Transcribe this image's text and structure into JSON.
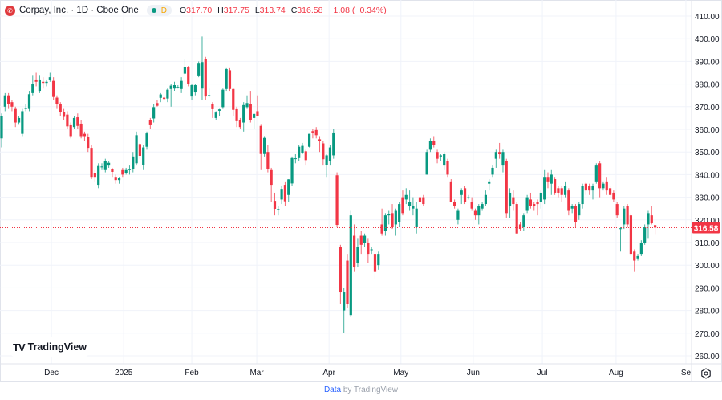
{
  "header": {
    "symbol_title": "Corpay, Inc. · 1D · Cboe One",
    "open_label": "O",
    "open": "317.70",
    "high_label": "H",
    "high": "317.75",
    "low_label": "L",
    "low": "313.74",
    "close_label": "C",
    "close": "316.58",
    "change": "−1.08 (−0.34%)",
    "market_status_letter": "D"
  },
  "branding": {
    "logo_text": "TradingView"
  },
  "footer": {
    "data_link": "Data",
    "by_text": "by TradingView"
  },
  "colors": {
    "up": "#089981",
    "down": "#f23645",
    "grid": "#f0f3fa",
    "text": "#131722"
  },
  "chart_data": {
    "type": "candlestick",
    "title": "Corpay, Inc. · 1D · Cboe One",
    "ylim": [
      260,
      410
    ],
    "yticks": [
      260,
      270,
      280,
      290,
      300,
      310,
      320,
      330,
      340,
      350,
      360,
      370,
      380,
      390,
      400,
      410
    ],
    "ytick_labels": [
      "260.00",
      "270.00",
      "280.00",
      "290.00",
      "300.00",
      "310.00",
      "320.00",
      "330.00",
      "340.00",
      "350.00",
      "360.00",
      "370.00",
      "380.00",
      "390.00",
      "400.00",
      "410.00"
    ],
    "xticks": [
      {
        "label": "Dec",
        "index": 14.4
      },
      {
        "label": "2025",
        "index": 35.3
      },
      {
        "label": "Feb",
        "index": 55
      },
      {
        "label": "Mar",
        "index": 73.8
      },
      {
        "label": "Apr",
        "index": 94.7
      },
      {
        "label": "May",
        "index": 115.5
      },
      {
        "label": "Jun",
        "index": 136.4
      },
      {
        "label": "Jul",
        "index": 156.4
      },
      {
        "label": "Aug",
        "index": 177.7
      },
      {
        "label": "Se",
        "index": 197.9
      }
    ],
    "last_price": 316.58,
    "last_price_label": "316.58",
    "grid": true,
    "candles_ohlc": [
      [
        356,
        367,
        352,
        366
      ],
      [
        370,
        376,
        368,
        375
      ],
      [
        375,
        376,
        369,
        371
      ],
      [
        372,
        373,
        368,
        370
      ],
      [
        369,
        370,
        361,
        363
      ],
      [
        363,
        366,
        362,
        365
      ],
      [
        358,
        369,
        357,
        368
      ],
      [
        369,
        371,
        368,
        369.5
      ],
      [
        369,
        377,
        368,
        375.5
      ],
      [
        376,
        384,
        375,
        380
      ],
      [
        382,
        385,
        379,
        381
      ],
      [
        377,
        384,
        376,
        382
      ],
      [
        381,
        383,
        378,
        380.5
      ],
      [
        380.5,
        382,
        379,
        381
      ],
      [
        382,
        385,
        381,
        383
      ],
      [
        381.4,
        383,
        373,
        374.3
      ],
      [
        374,
        375,
        369,
        371
      ],
      [
        371,
        372,
        366,
        367.5
      ],
      [
        367.7,
        369,
        364,
        365.5
      ],
      [
        366.5,
        368,
        360,
        361.3
      ],
      [
        361.8,
        363,
        356,
        357
      ],
      [
        361,
        366,
        360,
        365
      ],
      [
        365.3,
        367,
        360,
        361.5
      ],
      [
        362.5,
        364,
        356,
        357
      ],
      [
        358,
        359,
        355,
        357
      ],
      [
        356.6,
        358,
        350,
        351.8
      ],
      [
        351.8,
        353,
        338,
        339
      ],
      [
        340.8,
        342,
        337,
        339
      ],
      [
        335.5,
        345,
        334,
        343.8
      ],
      [
        343.2,
        345,
        342,
        343.6
      ],
      [
        342,
        347,
        341,
        346
      ],
      [
        344,
        346,
        343,
        345.2
      ],
      [
        342.4,
        343,
        339,
        341.2
      ],
      [
        339,
        340,
        336,
        337.6
      ],
      [
        337.6,
        339,
        336,
        338.5
      ],
      [
        342,
        343,
        339,
        340
      ],
      [
        340.8,
        343,
        340,
        342
      ],
      [
        342,
        344,
        340,
        342.6
      ],
      [
        342.6,
        350,
        341,
        348
      ],
      [
        345,
        359,
        344,
        357.4
      ],
      [
        353.5,
        354,
        347,
        348.3
      ],
      [
        344.4,
        353,
        342,
        352
      ],
      [
        352.3,
        359,
        351,
        358.2
      ],
      [
        363.9,
        365,
        360,
        361.8
      ],
      [
        364.8,
        371,
        363,
        369.8
      ],
      [
        371.6,
        373,
        370,
        370.4
      ],
      [
        373.9,
        376,
        372,
        375.4
      ],
      [
        374,
        375,
        373,
        373.4
      ],
      [
        373.6,
        378,
        372,
        377.5
      ],
      [
        377.8,
        380,
        370,
        379.3
      ],
      [
        378,
        381,
        377,
        379.5
      ],
      [
        378.5,
        379.5,
        378,
        378.7
      ],
      [
        377.8,
        383,
        376,
        381.4
      ],
      [
        384.6,
        391,
        384,
        387.5
      ],
      [
        387.5,
        388,
        379,
        380.2
      ],
      [
        374.5,
        380,
        373,
        379.5
      ],
      [
        376.3,
        380,
        375,
        379.5
      ],
      [
        383.8,
        390,
        383,
        389
      ],
      [
        378,
        401,
        373,
        389.7
      ],
      [
        391,
        392,
        373,
        374.5
      ],
      [
        374.8,
        378,
        374,
        375.1
      ],
      [
        371,
        372,
        365,
        368.9
      ],
      [
        365,
        368,
        364,
        367.4
      ],
      [
        368.2,
        369,
        366,
        368.8
      ],
      [
        369.8,
        378,
        369,
        377.5
      ],
      [
        377.8,
        387,
        377,
        386.6
      ],
      [
        386.1,
        387,
        377,
        377.8
      ],
      [
        377.8,
        378,
        366,
        368.6
      ],
      [
        368.9,
        370,
        361,
        363.6
      ],
      [
        363.9,
        365,
        360,
        361
      ],
      [
        363,
        372,
        359,
        370.7
      ],
      [
        369.8,
        375,
        369,
        371.6
      ],
      [
        371.2,
        377,
        363,
        364.1
      ],
      [
        365,
        367,
        360,
        366.8
      ],
      [
        368,
        375,
        366,
        366
      ],
      [
        361.5,
        362,
        342,
        349.1
      ],
      [
        349.1,
        357,
        348,
        356.2
      ],
      [
        350,
        353,
        341,
        342.6
      ],
      [
        342,
        343,
        328,
        335.5
      ],
      [
        328.4,
        332,
        322,
        324.9
      ],
      [
        324.6,
        326,
        322,
        324.8
      ],
      [
        329,
        335,
        327,
        333.7
      ],
      [
        335.5,
        337,
        326,
        328.2
      ],
      [
        331,
        338,
        328,
        337.9
      ],
      [
        336.1,
        348,
        335,
        347.3
      ],
      [
        347,
        349,
        345,
        347.2
      ],
      [
        347.3,
        353,
        346,
        352.3
      ],
      [
        349.7,
        354,
        349,
        352.7
      ],
      [
        350.3,
        351,
        344,
        346.4
      ],
      [
        352.3,
        358,
        352,
        358
      ],
      [
        359.2,
        360,
        356,
        358.6
      ],
      [
        359.7,
        361,
        356,
        357.4
      ],
      [
        355.6,
        357,
        350,
        355
      ],
      [
        353.8,
        355,
        344,
        346.8
      ],
      [
        344.4,
        349,
        339,
        348.5
      ],
      [
        345.9,
        353,
        344,
        352
      ],
      [
        348.5,
        360,
        347,
        358.6
      ],
      [
        339.7,
        341,
        317,
        317.8
      ],
      [
        308,
        309,
        283,
        288
      ],
      [
        280,
        290,
        270,
        288
      ],
      [
        302,
        305,
        281,
        283
      ],
      [
        278,
        324,
        277,
        322
      ],
      [
        313,
        318,
        297,
        299
      ],
      [
        301,
        312,
        299,
        308
      ],
      [
        313,
        315,
        305,
        309
      ],
      [
        310,
        314,
        308,
        313
      ],
      [
        310,
        312,
        301,
        305
      ],
      [
        307,
        308,
        305,
        307
      ],
      [
        305,
        306,
        294,
        297
      ],
      [
        300,
        306,
        298,
        305
      ],
      [
        318,
        325,
        313,
        314
      ],
      [
        315,
        323,
        313,
        322
      ],
      [
        322,
        324,
        318,
        322.5
      ],
      [
        323,
        327,
        316,
        317
      ],
      [
        318,
        325,
        313,
        324
      ],
      [
        319,
        328,
        317,
        327
      ],
      [
        330,
        333,
        322,
        323
      ],
      [
        329,
        334,
        327,
        331
      ],
      [
        326,
        333,
        324,
        328
      ],
      [
        325,
        330,
        322,
        326
      ],
      [
        317,
        328,
        314,
        325
      ],
      [
        330,
        332,
        324,
        328
      ],
      [
        330,
        331,
        326,
        327
      ],
      [
        340,
        351,
        340,
        350
      ],
      [
        351,
        356,
        350,
        355
      ],
      [
        355,
        357,
        352,
        353
      ],
      [
        350,
        351,
        345,
        347
      ],
      [
        348,
        349,
        346,
        348.5
      ],
      [
        344,
        350,
        342,
        349
      ],
      [
        346,
        347,
        339,
        340
      ],
      [
        337,
        338,
        328,
        328
      ],
      [
        328,
        329,
        325,
        326
      ],
      [
        320,
        325,
        318,
        324
      ],
      [
        331,
        334,
        327,
        333
      ],
      [
        334,
        335,
        327,
        328
      ],
      [
        330,
        331,
        329,
        330
      ],
      [
        328,
        330,
        324,
        325
      ],
      [
        324,
        325,
        320,
        322
      ],
      [
        322,
        327,
        318,
        326
      ],
      [
        325,
        328,
        324,
        327
      ],
      [
        327,
        333,
        326,
        331
      ],
      [
        336,
        338,
        333,
        337
      ],
      [
        340,
        344,
        339,
        343
      ],
      [
        347,
        351,
        343,
        350
      ],
      [
        350,
        354,
        347,
        349
      ],
      [
        344,
        351,
        341,
        350
      ],
      [
        346,
        347,
        321,
        323
      ],
      [
        326,
        334,
        321,
        332
      ],
      [
        330,
        333,
        324,
        327
      ],
      [
        327,
        328,
        314,
        314
      ],
      [
        318,
        319,
        315,
        316
      ],
      [
        317,
        323,
        315,
        322
      ],
      [
        324,
        331,
        323,
        330
      ],
      [
        329,
        332,
        325,
        326
      ],
      [
        327,
        328,
        324,
        326
      ],
      [
        328,
        329,
        322,
        327
      ],
      [
        328,
        333,
        325,
        332
      ],
      [
        329,
        342,
        327,
        339
      ],
      [
        339,
        341,
        334,
        337
      ],
      [
        336,
        342,
        331,
        340
      ],
      [
        338,
        339,
        331,
        332
      ],
      [
        334,
        335,
        330,
        332
      ],
      [
        334,
        335,
        328,
        331
      ],
      [
        331,
        337,
        330,
        335
      ],
      [
        333,
        334,
        322,
        324
      ],
      [
        325,
        327,
        323,
        326
      ],
      [
        326,
        327,
        317,
        319
      ],
      [
        322,
        328,
        320,
        327
      ],
      [
        327,
        336,
        325,
        335
      ],
      [
        336,
        337,
        331,
        333
      ],
      [
        335,
        336,
        331,
        333
      ],
      [
        333,
        336,
        329,
        335
      ],
      [
        337,
        345,
        336,
        344
      ],
      [
        345,
        346,
        330,
        334
      ],
      [
        334,
        337,
        333,
        336
      ],
      [
        337,
        339,
        331,
        333
      ],
      [
        334,
        335,
        330,
        331
      ],
      [
        332,
        333,
        328,
        329
      ],
      [
        327,
        328,
        321,
        322
      ],
      [
        316,
        317,
        306,
        316.3
      ],
      [
        318,
        326,
        316,
        325
      ],
      [
        326,
        327,
        317,
        318
      ],
      [
        322,
        323,
        304,
        305
      ],
      [
        306,
        307,
        297,
        302
      ],
      [
        303,
        305,
        302,
        304
      ],
      [
        305,
        311,
        304,
        310
      ],
      [
        310,
        318,
        309,
        317
      ],
      [
        318,
        324,
        312,
        323
      ],
      [
        322,
        326,
        318,
        318.5
      ],
      [
        317.7,
        317.75,
        313.74,
        316.58
      ]
    ]
  }
}
